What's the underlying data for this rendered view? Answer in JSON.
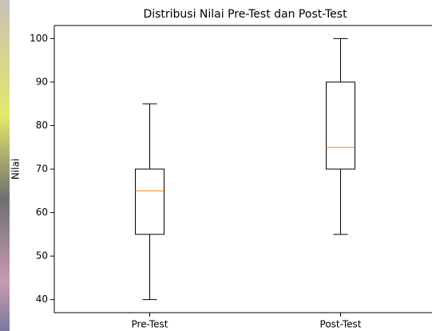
{
  "chart_data": {
    "type": "box",
    "title": "Distribusi Nilai Pre-Test dan Post-Test",
    "y_label": "Nilai",
    "categories": [
      "Pre-Test",
      "Post-Test"
    ],
    "boxes": [
      {
        "min": 40,
        "q1": 55,
        "median": 65,
        "q3": 70,
        "max": 85
      },
      {
        "min": 55,
        "q1": 70,
        "median": 75,
        "q3": 90,
        "max": 100
      }
    ],
    "median_color": "#ff7f0e",
    "box_color": "#000000",
    "ylim": [
      37,
      103
    ],
    "yticks": [
      40,
      50,
      60,
      70,
      80,
      90,
      100
    ]
  }
}
